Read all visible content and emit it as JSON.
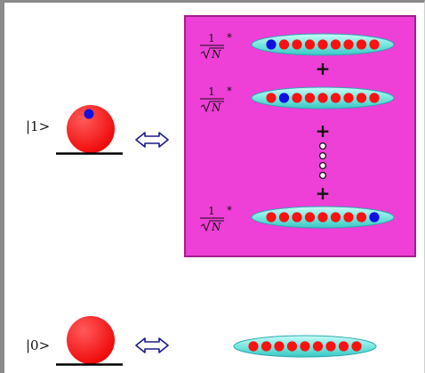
{
  "left_states": [
    {
      "ket": "|1>",
      "has_excitation": true
    },
    {
      "ket": "|0>",
      "has_excitation": false
    }
  ],
  "arrow_symbol": "⟺",
  "superposition_box": {
    "coefficient_numerator": "1",
    "coefficient_denominator": "N",
    "multiply_symbol": "*",
    "plus_symbol": "+",
    "excited_positions": [
      0,
      1,
      8
    ],
    "ellipsis_dots": 4
  },
  "atoms_per_ensemble": 9,
  "colors": {
    "atom": "#ff1010",
    "excitation": "#1010e0",
    "ensemble_fill": "#78e8e0",
    "ensemble_stroke": "#2aa8b0",
    "box_fill": "#ee3fd6",
    "box_border": "#a21e8c",
    "ground_line": "#000000",
    "arrow": "#1a1a8a"
  }
}
